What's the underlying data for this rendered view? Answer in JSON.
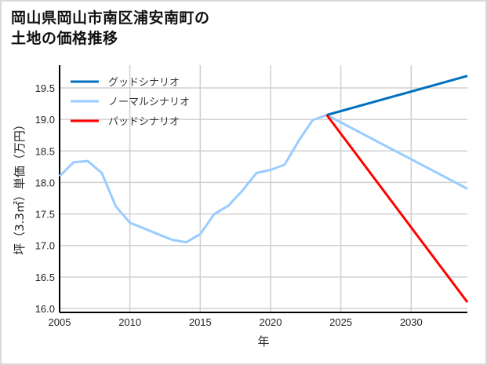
{
  "title": {
    "line1": "岡山県岡山市南区浦安南町の",
    "line2": "土地の価格推移"
  },
  "chart_data": {
    "type": "line",
    "title": "岡山県岡山市南区浦安南町の土地の価格推移",
    "xlabel": "年",
    "ylabel": "坪（3.3㎡）単価（万円）",
    "xlim": [
      2005,
      2034
    ],
    "ylim": [
      15.97,
      19.85
    ],
    "x_ticks": [
      "2005",
      "2010",
      "2015",
      "2020",
      "2025",
      "2030"
    ],
    "y_ticks": [
      "16.0",
      "16.5",
      "17.0",
      "17.5",
      "18.0",
      "18.5",
      "19.0",
      "19.5"
    ],
    "grid": true,
    "legend_position": "upper left",
    "series": [
      {
        "name": "グッドシナリオ",
        "color": "#0070c0",
        "x": [
          2024,
          2034
        ],
        "values": [
          19.07,
          19.69
        ]
      },
      {
        "name": "ノーマルシナリオ",
        "color": "#99ccff",
        "x": [
          2005,
          2006,
          2007,
          2008,
          2009,
          2010,
          2011,
          2012,
          2013,
          2014,
          2015,
          2016,
          2017,
          2018,
          2019,
          2020,
          2021,
          2022,
          2023,
          2024,
          2034
        ],
        "values": [
          18.1,
          18.32,
          18.34,
          18.15,
          17.62,
          17.36,
          17.27,
          17.18,
          17.09,
          17.05,
          17.18,
          17.5,
          17.63,
          17.87,
          18.15,
          18.2,
          18.28,
          18.66,
          18.99,
          19.07,
          17.9
        ]
      },
      {
        "name": "バッドシナリオ",
        "color": "#ff0000",
        "x": [
          2024,
          2034
        ],
        "values": [
          19.07,
          16.1
        ]
      }
    ]
  }
}
